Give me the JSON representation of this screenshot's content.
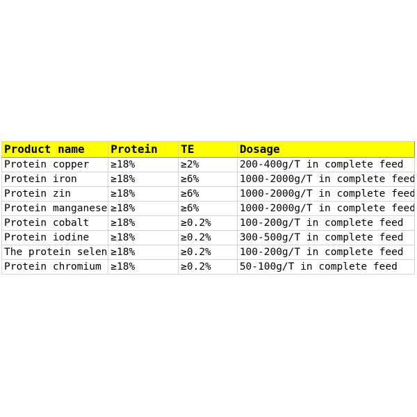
{
  "table": {
    "headers": [
      "Product name",
      "Protein",
      "TE",
      "Dosage"
    ],
    "rows": [
      [
        "Protein copper",
        "≥18%",
        "≥2%",
        "200-400g/T in complete feed"
      ],
      [
        "Protein iron",
        "≥18%",
        "≥6%",
        "1000-2000g/T in complete feed"
      ],
      [
        "Protein zin",
        "≥18%",
        "≥6%",
        "1000-2000g/T in complete feed"
      ],
      [
        "Protein manganese",
        "≥18%",
        "≥6%",
        "1000-2000g/T in complete feed"
      ],
      [
        "Protein cobalt",
        "≥18%",
        "≥0.2%",
        "100-200g/T in complete feed"
      ],
      [
        "Protein iodine",
        "≥18%",
        "≥0.2%",
        "300-500g/T in complete feed"
      ],
      [
        "The protein seleni",
        "≥18%",
        "≥0.2%",
        "100-200g/T in complete feed"
      ],
      [
        "Protein chromium",
        "≥18%",
        "≥0.2%",
        "50-100g/T in complete feed"
      ]
    ]
  },
  "colors": {
    "header_background": "#ffff00",
    "gridline": "#d4d4d4"
  }
}
